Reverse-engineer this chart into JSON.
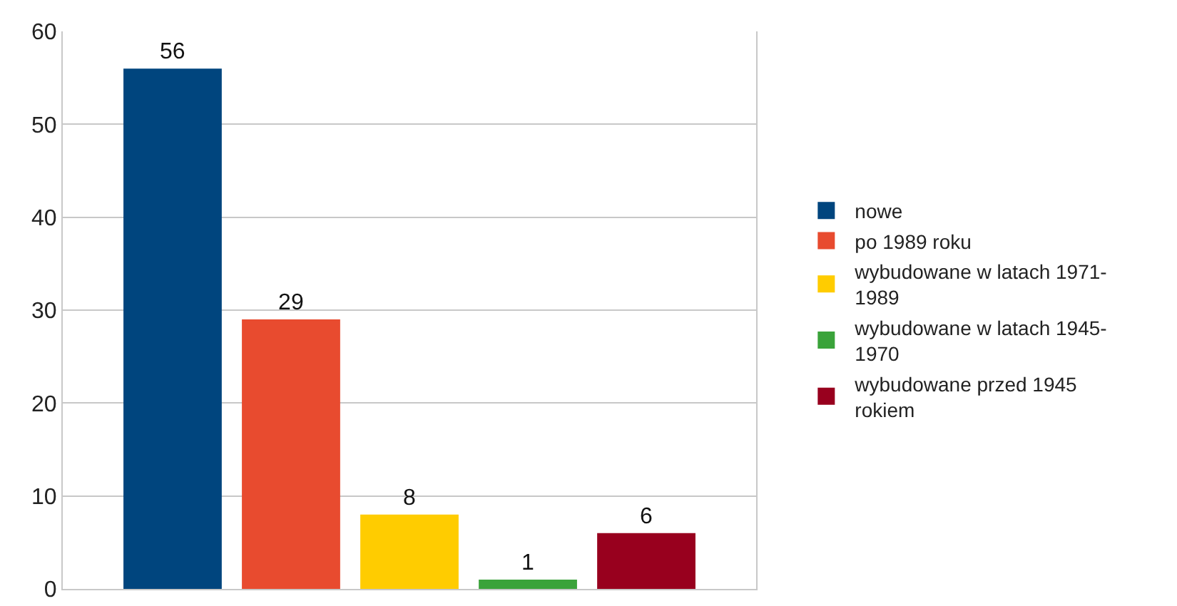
{
  "chart_data": {
    "type": "bar",
    "categories": [
      null
    ],
    "series": [
      {
        "name": "nowe",
        "color": "#00457e",
        "values": [
          56
        ]
      },
      {
        "name": "po 1989 roku",
        "color": "#e84b2f",
        "values": [
          29
        ]
      },
      {
        "name": "wybudowane w latach 1971-1989",
        "color": "#ffcc00",
        "values": [
          8
        ]
      },
      {
        "name": "wybudowane w latach 1945-1970",
        "color": "#3aa33a",
        "values": [
          1
        ]
      },
      {
        "name": "wybudowane przed 1945 rokiem",
        "color": "#98001e",
        "values": [
          6
        ]
      }
    ],
    "ylim": [
      0,
      60
    ],
    "yticks": [
      0,
      10,
      20,
      30,
      40,
      50,
      60
    ],
    "grid": "y",
    "legend": "right",
    "data_labels": true,
    "tick_labels": "y"
  }
}
